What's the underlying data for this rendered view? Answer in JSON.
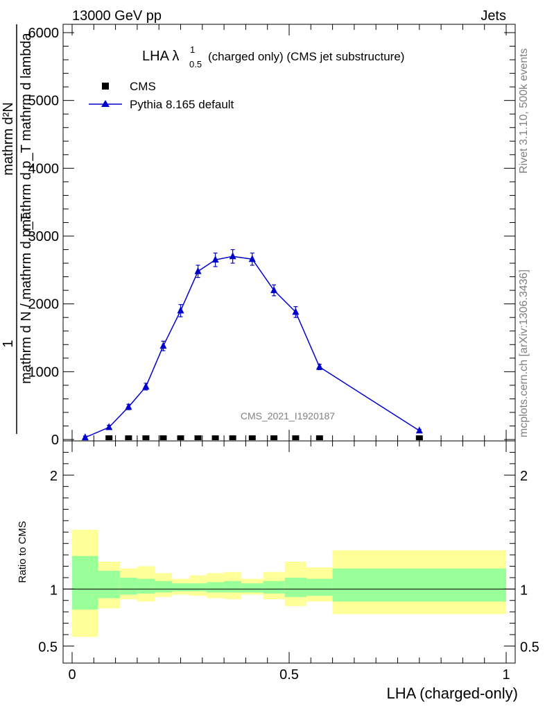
{
  "header": {
    "energy_label": "13000 GeV pp",
    "category_label": "Jets"
  },
  "side_labels": {
    "rivet": "Rivet 3.1.10,  500k events",
    "mcplots": "mcplots.cern.ch [arXiv:1306.3436]"
  },
  "colors": {
    "mc": "#0000cc",
    "data": "#000000",
    "band_stat": "#99ff99",
    "band_total": "#ffff99"
  },
  "chart_data": [
    {
      "type": "line",
      "title_main": "LHA λ",
      "title_sup": "1",
      "title_sub": "0.5",
      "title_rest": "(charged only) (CMS jet substructure)",
      "ylabel_numerator": "mathrm d²N",
      "ylabel_denominator": "mathrm d p_T mathrm d lambda",
      "ylabel_prefix_num": "1",
      "ylabel_prefix_den": "mathrm d N / mathrm d p_T",
      "watermark": "CMS_2021_I1920187",
      "xlim": [
        0,
        1
      ],
      "ylim": [
        0,
        6000
      ],
      "yticks": [
        0,
        1000,
        2000,
        3000,
        4000,
        5000,
        6000
      ],
      "ytick_labels": [
        "0",
        "1000",
        "2000",
        "3000",
        "4000",
        "5000",
        "6000"
      ],
      "legend": [
        {
          "name": "CMS",
          "marker": "square"
        },
        {
          "name": "Pythia 8.165 default",
          "marker": "triangle"
        }
      ],
      "series": [
        {
          "name": "Pythia 8.165 default",
          "x": [
            0.03,
            0.085,
            0.13,
            0.17,
            0.21,
            0.25,
            0.29,
            0.33,
            0.37,
            0.415,
            0.465,
            0.515,
            0.57,
            0.8
          ],
          "y": [
            30,
            180,
            480,
            780,
            1380,
            1900,
            2480,
            2650,
            2700,
            2660,
            2200,
            1880,
            1070,
            130
          ],
          "err": [
            20,
            30,
            40,
            50,
            70,
            90,
            90,
            100,
            100,
            90,
            80,
            80,
            40,
            20
          ]
        },
        {
          "name": "CMS",
          "x": [
            0.085,
            0.13,
            0.17,
            0.21,
            0.25,
            0.29,
            0.33,
            0.37,
            0.415,
            0.465,
            0.515,
            0.57,
            0.8
          ],
          "y": [
            0,
            0,
            0,
            0,
            0,
            0,
            0,
            0,
            0,
            0,
            0,
            0,
            0
          ]
        }
      ]
    },
    {
      "type": "area",
      "ylabel": "Ratio to CMS",
      "xlabel": "LHA (charged-only)",
      "xlim": [
        0,
        1
      ],
      "ylim": [
        0.35,
        2.3
      ],
      "xticks": [
        0,
        0.5,
        1
      ],
      "xtick_labels": [
        "0",
        "0.5",
        "1"
      ],
      "yticks": [
        0.5,
        1,
        2
      ],
      "ytick_labels": [
        "0.5",
        "1",
        "2"
      ],
      "bins": [
        {
          "lo": 0.0,
          "hi": 0.06,
          "stat": [
            0.82,
            1.29
          ],
          "total": [
            0.58,
            1.52
          ]
        },
        {
          "lo": 0.06,
          "hi": 0.11,
          "stat": [
            0.92,
            1.16
          ],
          "total": [
            0.83,
            1.24
          ]
        },
        {
          "lo": 0.11,
          "hi": 0.15,
          "stat": [
            0.95,
            1.1
          ],
          "total": [
            0.91,
            1.18
          ]
        },
        {
          "lo": 0.15,
          "hi": 0.19,
          "stat": [
            0.96,
            1.09
          ],
          "total": [
            0.89,
            1.2
          ]
        },
        {
          "lo": 0.19,
          "hi": 0.23,
          "stat": [
            0.97,
            1.07
          ],
          "total": [
            0.93,
            1.14
          ]
        },
        {
          "lo": 0.23,
          "hi": 0.27,
          "stat": [
            0.98,
            1.05
          ],
          "total": [
            0.95,
            1.09
          ]
        },
        {
          "lo": 0.27,
          "hi": 0.31,
          "stat": [
            0.98,
            1.05
          ],
          "total": [
            0.94,
            1.12
          ]
        },
        {
          "lo": 0.31,
          "hi": 0.35,
          "stat": [
            0.97,
            1.06
          ],
          "total": [
            0.92,
            1.14
          ]
        },
        {
          "lo": 0.35,
          "hi": 0.39,
          "stat": [
            0.97,
            1.07
          ],
          "total": [
            0.91,
            1.15
          ]
        },
        {
          "lo": 0.39,
          "hi": 0.44,
          "stat": [
            0.97,
            1.05
          ],
          "total": [
            0.95,
            1.09
          ]
        },
        {
          "lo": 0.44,
          "hi": 0.49,
          "stat": [
            0.96,
            1.07
          ],
          "total": [
            0.91,
            1.15
          ]
        },
        {
          "lo": 0.49,
          "hi": 0.54,
          "stat": [
            0.93,
            1.1
          ],
          "total": [
            0.85,
            1.24
          ]
        },
        {
          "lo": 0.54,
          "hi": 0.6,
          "stat": [
            0.94,
            1.09
          ],
          "total": [
            0.89,
            1.19
          ]
        },
        {
          "lo": 0.6,
          "hi": 1.0,
          "stat": [
            0.89,
            1.18
          ],
          "total": [
            0.78,
            1.34
          ]
        }
      ],
      "reference_line": 1
    }
  ]
}
